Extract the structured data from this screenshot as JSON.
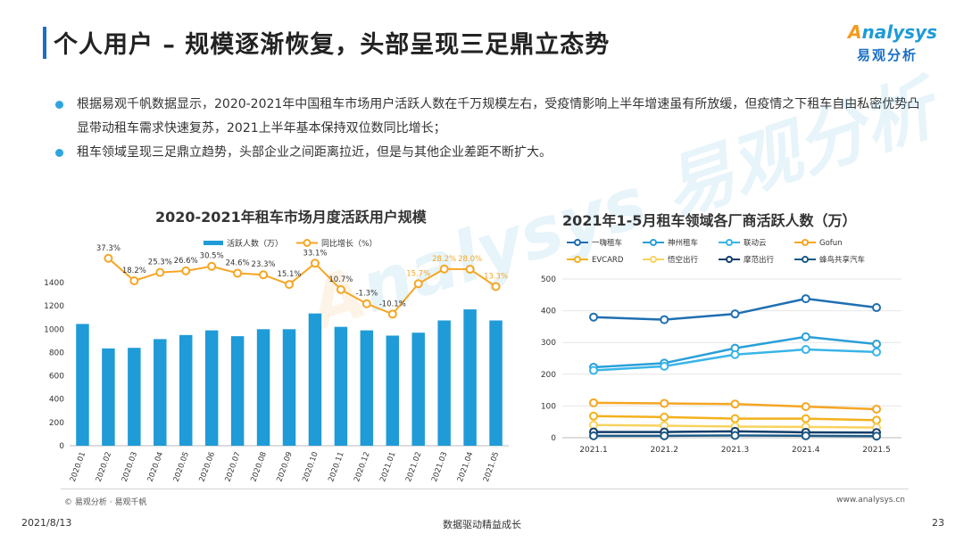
{
  "header": {
    "title": "个人用户 – 规模逐渐恢复，头部呈现三足鼎立态势",
    "logo_main": "nalysys",
    "logo_initial": "A",
    "logo_sub": "易观分析"
  },
  "bullets": [
    "根据易观千帆数据显示，2020-2021年中国租车市场用户活跃人数在千万规模左右，受疫情影响上半年增速虽有所放缓，但疫情之下租车自由私密优势凸显带动租车需求快速复苏，2021上半年基本保持双位数同比增长；",
    "租车领域呈现三足鼎立趋势，头部企业之间距离拉近，但是与其他企业差距不断扩大。"
  ],
  "watermark": {
    "initial": "A",
    "text": "nalysys 易观分析"
  },
  "footer": {
    "copyright": "© 易观分析 · 易观千帆",
    "website": "www.analysys.cn",
    "date": "2021/8/13",
    "slogan": "数据驱动精益成长",
    "page": "23"
  },
  "colors": {
    "bar": "#1f9bd7",
    "growth_line": "#f5a623",
    "growth_label_dark": "#333333",
    "growth_label_highlight": "#f5a623"
  },
  "chart_data": [
    {
      "type": "bar",
      "title": "2020-2021年租车市场月度活跃用户规模",
      "categories": [
        "2020.01",
        "2020.02",
        "2020.03",
        "2020.04",
        "2020.05",
        "2020.06",
        "2020.07",
        "2020.08",
        "2020.09",
        "2020.10",
        "2020.11",
        "2020.12",
        "2021.01",
        "2021.02",
        "2021.03",
        "2021.04",
        "2021.05"
      ],
      "series": [
        {
          "name": "活跃人数（万）",
          "kind": "bar",
          "color": "#1f9bd7",
          "values": [
            1045,
            835,
            840,
            915,
            950,
            990,
            940,
            1000,
            1000,
            1135,
            1020,
            990,
            945,
            970,
            1075,
            1170,
            1075
          ]
        },
        {
          "name": "同比增长（%）",
          "kind": "line",
          "color": "#f5a623",
          "values": [
            null,
            37.3,
            18.2,
            25.3,
            26.6,
            30.5,
            24.6,
            23.3,
            15.1,
            33.1,
            10.7,
            -1.3,
            -10.1,
            15.7,
            28.2,
            28.0,
            13.3
          ],
          "labels": [
            "",
            "37.3%",
            "18.2%",
            "25.3%",
            "26.6%",
            "30.5%",
            "24.6%",
            "23.3%",
            "15.1%",
            "33.1%",
            "10.7%",
            "-1.3%",
            "-10.1%",
            "15.7%",
            "28.2%",
            "28.0%",
            "13.3%"
          ],
          "highlight_from_index": 13
        }
      ],
      "ylim": [
        0,
        1400
      ],
      "yticks": [
        "0",
        "200",
        "400",
        "600",
        "800",
        "1000",
        "1200",
        "1400"
      ],
      "growth_ylim": [
        -50,
        50
      ],
      "legend_position": "top-center",
      "grid": false
    },
    {
      "type": "line",
      "title": "2021年1-5月租车领域各厂商活跃人数（万）",
      "categories": [
        "2021.1",
        "2021.2",
        "2021.3",
        "2021.4",
        "2021.5"
      ],
      "series": [
        {
          "name": "一嗨租车",
          "color": "#1f6fb2",
          "values": [
            380,
            372,
            390,
            438,
            410
          ]
        },
        {
          "name": "神州租车",
          "color": "#2a9fd8",
          "values": [
            222,
            235,
            282,
            318,
            295
          ]
        },
        {
          "name": "联动云",
          "color": "#39b5e8",
          "values": [
            212,
            225,
            262,
            278,
            270
          ]
        },
        {
          "name": "Gofun",
          "color": "#f5a623",
          "values": [
            110,
            108,
            106,
            98,
            90
          ]
        },
        {
          "name": "EVCARD",
          "color": "#f3b11c",
          "values": [
            68,
            65,
            60,
            60,
            55
          ]
        },
        {
          "name": "悟空出行",
          "color": "#f7d35e",
          "values": [
            40,
            38,
            35,
            34,
            32
          ]
        },
        {
          "name": "摩范出行",
          "color": "#123f6b",
          "values": [
            18,
            18,
            20,
            17,
            16
          ]
        },
        {
          "name": "蜂鸟共享汽车",
          "color": "#1d5a85",
          "values": [
            6,
            6,
            7,
            6,
            5
          ]
        }
      ],
      "ylim": [
        0,
        500
      ],
      "yticks": [
        "0",
        "100",
        "200",
        "300",
        "400",
        "500"
      ],
      "legend_position": "top",
      "grid": true
    }
  ]
}
